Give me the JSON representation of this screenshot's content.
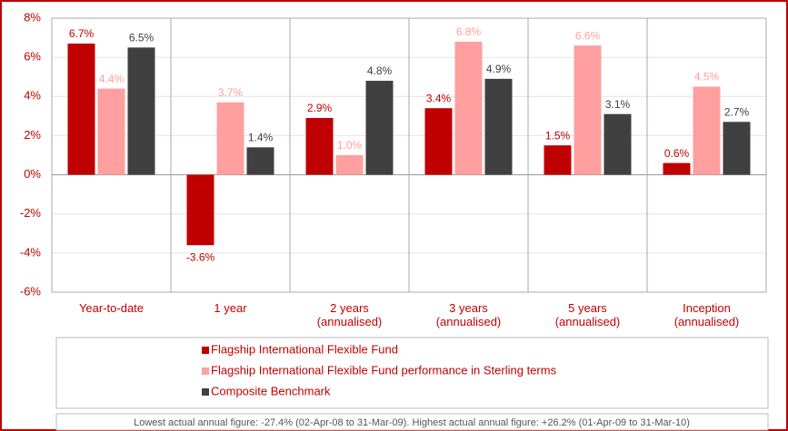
{
  "chart_data": {
    "type": "bar",
    "categories": [
      "Year-to-date",
      "1 year",
      "2 years\n(annualised)",
      "3 years\n(annualised)",
      "5 years\n(annualised)",
      "Inception\n(annualised)"
    ],
    "series": [
      {
        "name": "Flagship International Flexible Fund",
        "color": "#c00000",
        "label_color": "#c00000",
        "values": [
          6.7,
          -3.6,
          2.9,
          3.4,
          1.5,
          0.6
        ],
        "value_labels": [
          "6.7%",
          "-3.6%",
          "2.9%",
          "3.4%",
          "1.5%",
          "0.6%"
        ]
      },
      {
        "name": "Flagship International Flexible Fund performance in Sterling terms",
        "color": "#ff9f9f",
        "label_color": "#ff9f9f",
        "values": [
          4.4,
          3.7,
          1.0,
          6.8,
          6.6,
          4.5
        ],
        "value_labels": [
          "4.4%",
          "3.7%",
          "1.0%",
          "6.8%",
          "6.6%",
          "4.5%"
        ]
      },
      {
        "name": "Composite Benchmark",
        "color": "#404040",
        "label_color": "#404040",
        "values": [
          6.5,
          1.4,
          4.8,
          4.9,
          3.1,
          2.7
        ],
        "value_labels": [
          "6.5%",
          "1.4%",
          "4.8%",
          "4.9%",
          "3.1%",
          "2.7%"
        ]
      }
    ],
    "ylim": [
      -6,
      8
    ],
    "yticks": [
      {
        "value": -6,
        "label": "-6%"
      },
      {
        "value": -4,
        "label": "-4%"
      },
      {
        "value": -2,
        "label": "-2%"
      },
      {
        "value": 0,
        "label": "0%"
      },
      {
        "value": 2,
        "label": "2%"
      },
      {
        "value": 4,
        "label": "4%"
      },
      {
        "value": 6,
        "label": "6%"
      },
      {
        "value": 8,
        "label": "8%"
      }
    ],
    "grid": true,
    "footnote": "Lowest actual annual figure: -27.4% (02-Apr-08 to 31-Mar-09). Highest actual annual figure: +26.2% (01-Apr-09 to 31-Mar-10)"
  }
}
